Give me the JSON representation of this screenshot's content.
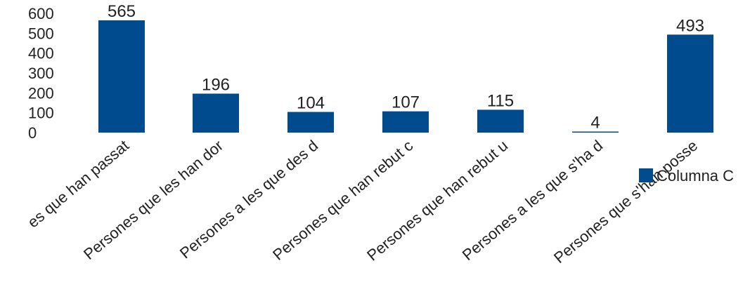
{
  "chart_data": {
    "type": "bar",
    "categories": [
      "es que han passat",
      "Persones que les han dor",
      "Persones a les que des d",
      "Persones que han rebut c",
      "Persones que han rebut u",
      "Persones a les que s'ha d",
      "Persones que s'han posse"
    ],
    "series": [
      {
        "name": "Columna C",
        "values": [
          565,
          196,
          104,
          107,
          115,
          4,
          493
        ]
      }
    ],
    "data_labels": [
      "565",
      "196",
      "104",
      "107",
      "115",
      "4",
      "493"
    ],
    "yticks": [
      "0",
      "100",
      "200",
      "300",
      "400",
      "500",
      "600"
    ],
    "ylim": [
      0,
      600
    ],
    "legend_position": "right",
    "grid": false,
    "colors": {
      "bar": "#004B8D"
    }
  }
}
